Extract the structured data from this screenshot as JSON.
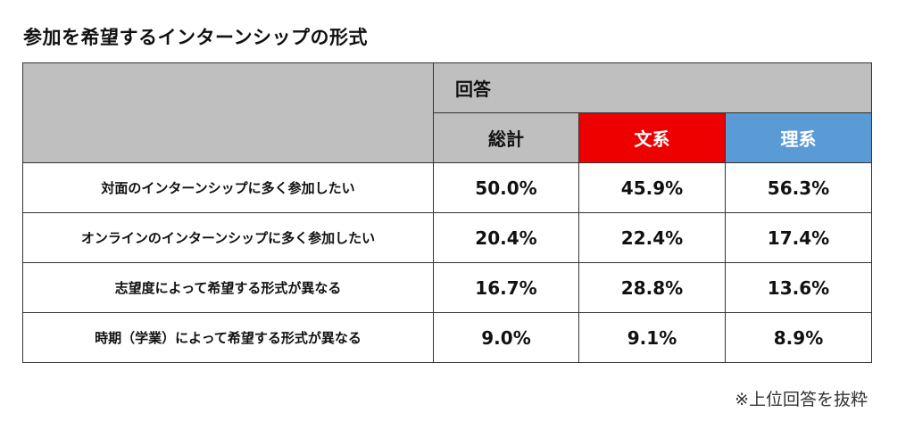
{
  "title": "参加を希望するインターンシップの形式",
  "note": "※上位回答を抜粋",
  "colors": {
    "header_gray": "#bfbfbf",
    "bunkei": "#ee0000",
    "rikei": "#5b9bd5"
  },
  "chart_data": {
    "type": "table",
    "title": "参加を希望するインターンシップの形式",
    "group_header": "回答",
    "columns": [
      "総計",
      "文系",
      "理系"
    ],
    "rows": [
      {
        "label": "対面のインターンシップに多く参加したい",
        "values": [
          "50.0%",
          "45.9%",
          "56.3%"
        ]
      },
      {
        "label": "オンラインのインターンシップに多く参加したい",
        "values": [
          "20.4%",
          "22.4%",
          "17.4%"
        ]
      },
      {
        "label": "志望度によって希望する形式が異なる",
        "values": [
          "16.7%",
          "28.8%",
          "13.6%"
        ]
      },
      {
        "label": "時期（学業）によって希望する形式が異なる",
        "values": [
          "9.0%",
          "9.1%",
          "8.9%"
        ]
      }
    ],
    "note": "※上位回答を抜粋"
  }
}
